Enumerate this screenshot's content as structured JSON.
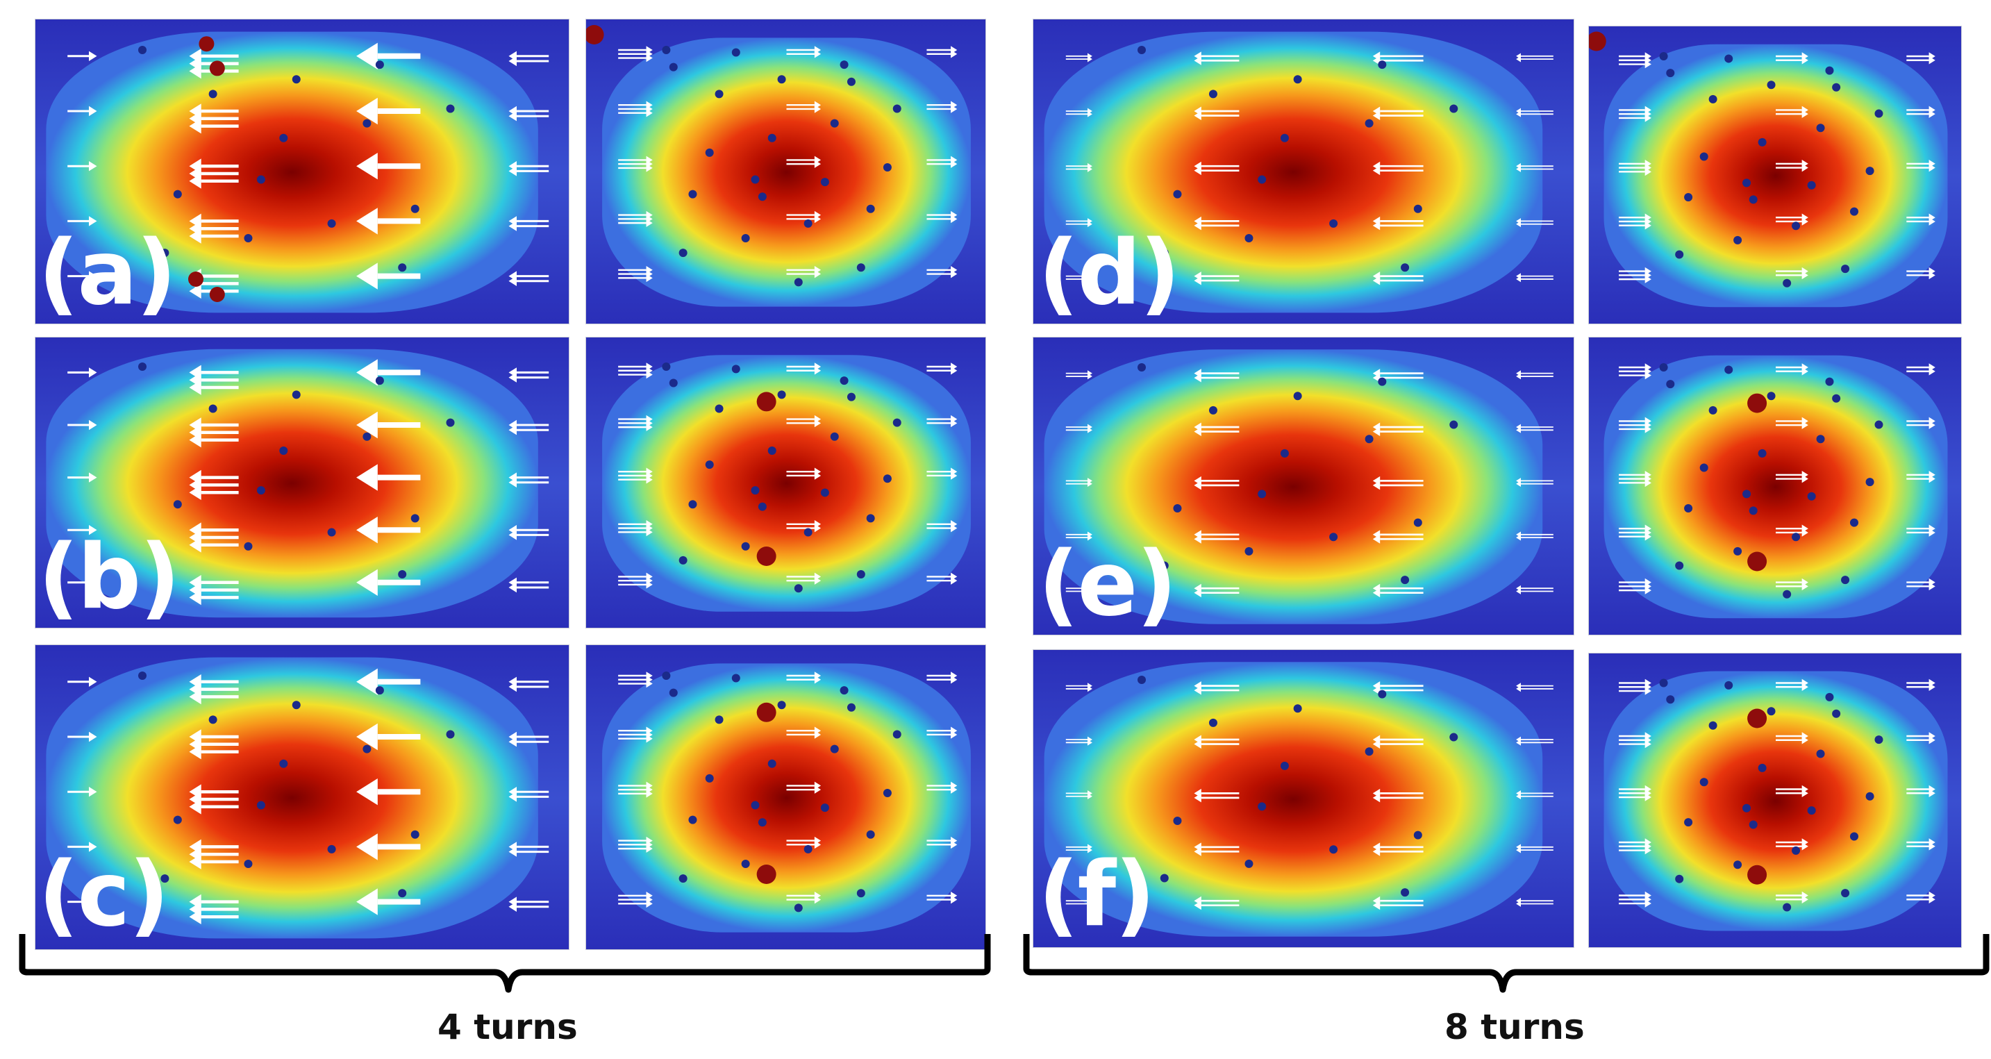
{
  "figure": {
    "rows": [
      {
        "letter": "(a)",
        "state": "a"
      },
      {
        "letter": "(b)",
        "state": "b"
      },
      {
        "letter": "(c)",
        "state": "c"
      },
      {
        "letter": "(d)",
        "state": "d"
      },
      {
        "letter": "(e)",
        "state": "e"
      },
      {
        "letter": "(f)",
        "state": "f"
      }
    ],
    "groups": [
      {
        "label": "4 turns"
      },
      {
        "label": "8 turns"
      }
    ],
    "colors": {
      "heatmap_low": "#1a1fa6",
      "heatmap_mid": "#2ec8e0",
      "heatmap_yellow": "#f2e02a",
      "heatmap_high": "#7a0000",
      "arrow": "#ffffff",
      "small_dot": "#1b2a8a",
      "large_dot": "#8e0c0c"
    }
  }
}
